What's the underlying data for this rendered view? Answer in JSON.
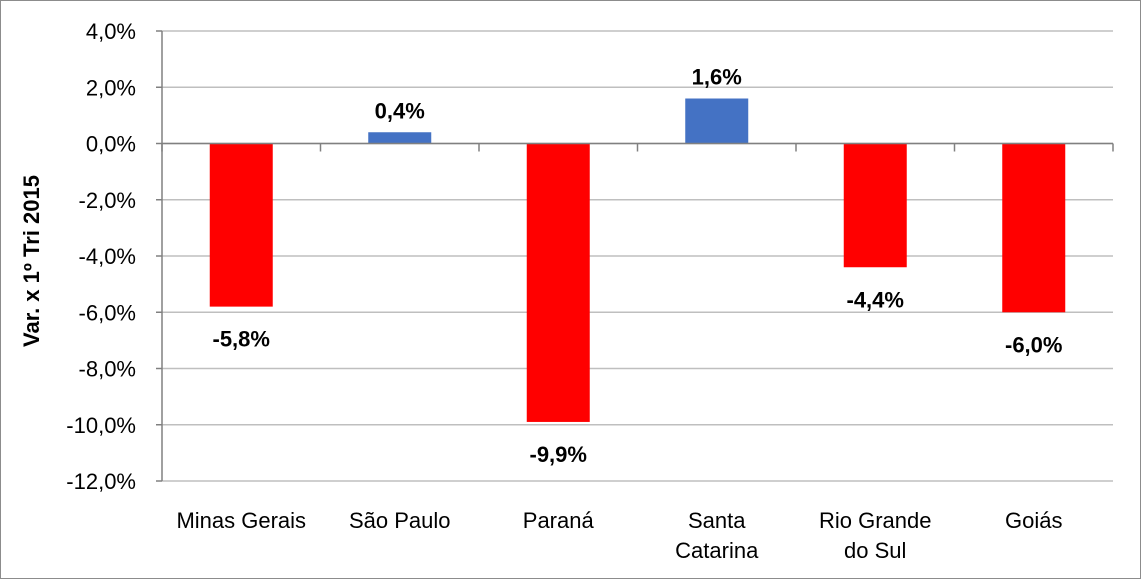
{
  "chart_data": {
    "type": "bar",
    "title": "",
    "xlabel": "",
    "ylabel": "Var. x 1º Tri 2015",
    "categories": [
      [
        "Minas Gerais"
      ],
      [
        "São Paulo"
      ],
      [
        "Paraná"
      ],
      [
        "Santa",
        "Catarina"
      ],
      [
        "Rio Grande",
        "do Sul"
      ],
      [
        "Goiás"
      ]
    ],
    "values": [
      -5.8,
      0.4,
      -9.9,
      1.6,
      -4.4,
      -6.0
    ],
    "value_labels": [
      "-5,8%",
      "0,4%",
      "-9,9%",
      "1,6%",
      "-4,4%",
      "-6,0%"
    ],
    "ylim": [
      -12.0,
      4.0
    ],
    "yticks": [
      "4,0%",
      "2,0%",
      "0,0%",
      "-2,0%",
      "-4,0%",
      "-6,0%",
      "-8,0%",
      "-10,0%",
      "-12,0%"
    ],
    "grid": true,
    "colors": {
      "positive": "#4472C4",
      "negative": "#FF0000",
      "grid": "#BFBFBF",
      "axis": "#808080"
    }
  }
}
